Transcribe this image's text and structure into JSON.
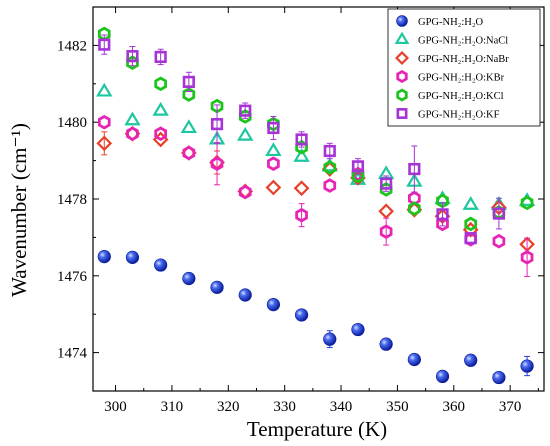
{
  "chart_data": {
    "type": "scatter",
    "xlabel": "Temperature (K)",
    "ylabel": "Wavenumber (cm⁻¹)",
    "xlim": [
      296,
      376
    ],
    "ylim": [
      1473,
      1483
    ],
    "x_ticks": [
      300,
      310,
      320,
      330,
      340,
      350,
      360,
      370
    ],
    "y_ticks": [
      1474,
      1476,
      1478,
      1480,
      1482
    ],
    "grid": false,
    "legend_position": "top-right",
    "x": [
      298,
      303,
      308,
      313,
      318,
      323,
      328,
      333,
      338,
      343,
      348,
      353,
      358,
      363,
      368,
      373
    ],
    "series": [
      {
        "name": "GPG-NH₂:H₂O",
        "marker": "sphere",
        "color": "#1f3fe0",
        "values": [
          1476.5,
          1476.48,
          1476.28,
          1475.93,
          1475.7,
          1475.5,
          1475.25,
          1474.98,
          1474.35,
          1474.6,
          1474.22,
          1473.82,
          1473.38,
          1473.8,
          1473.35,
          1473.65
        ],
        "errors": [
          0,
          0,
          0,
          0,
          0,
          0,
          0,
          0,
          0.22,
          0,
          0,
          0,
          0,
          0,
          0,
          0.25
        ]
      },
      {
        "name": "GPG-NH₂:H₂O:NaCl",
        "marker": "triangle",
        "color": "#1dc7a0",
        "values": [
          1480.8,
          1480.05,
          1480.3,
          1479.85,
          1479.55,
          1479.65,
          1479.25,
          1479.1,
          1478.85,
          1478.5,
          1478.65,
          1478.45,
          1478.0,
          1477.85,
          1477.85,
          1477.95
        ],
        "errors": [
          0,
          0,
          0,
          0,
          0,
          0,
          0,
          0,
          0,
          0,
          0,
          0,
          0,
          0,
          0,
          0
        ]
      },
      {
        "name": "GPG-NH₂:H₂O:NaBr",
        "marker": "diamond",
        "color": "#e8402a",
        "values": [
          1479.45,
          1479.7,
          1479.55,
          1479.2,
          1478.95,
          1478.2,
          1478.3,
          1478.28,
          1478.78,
          1478.55,
          1477.68,
          1477.72,
          1477.55,
          1477.2,
          1477.78,
          1476.82
        ],
        "errors": [
          0.3,
          0,
          0,
          0,
          0.3,
          0,
          0,
          0,
          0,
          0,
          0,
          0,
          0,
          0,
          0,
          0
        ]
      },
      {
        "name": "GPG-NH₂:H₂O:KBr",
        "marker": "hexagon",
        "color": "#e824b4",
        "values": [
          1480.0,
          1479.7,
          1479.7,
          1479.2,
          1478.92,
          1478.18,
          1478.92,
          1477.58,
          1478.35,
          1478.65,
          1477.15,
          1478.02,
          1477.35,
          1476.95,
          1476.9,
          1476.48
        ],
        "errors": [
          0,
          0,
          0,
          0,
          0.55,
          0,
          0,
          0.3,
          0,
          0,
          0.35,
          0,
          0,
          0,
          0,
          0.5
        ]
      },
      {
        "name": "GPG-NH₂:H₂O:KCl",
        "marker": "hexagon",
        "color": "#1ec41e",
        "values": [
          1482.3,
          1481.55,
          1481.0,
          1480.72,
          1480.42,
          1480.15,
          1479.95,
          1479.35,
          1478.82,
          1478.6,
          1478.25,
          1477.75,
          1477.95,
          1477.35,
          1477.65,
          1477.9
        ],
        "errors": [
          0,
          0,
          0,
          0,
          0,
          0,
          0,
          0,
          0,
          0,
          0,
          0,
          0,
          0,
          0,
          0
        ]
      },
      {
        "name": "GPG-NH₂:H₂O:KF",
        "marker": "square",
        "color": "#a533d6",
        "values": [
          1482.02,
          1481.72,
          1481.7,
          1481.05,
          1479.95,
          1480.3,
          1479.85,
          1479.55,
          1479.25,
          1478.85,
          1478.4,
          1478.78,
          1477.6,
          1476.98,
          1477.62,
          null
        ],
        "errors": [
          0.25,
          0.25,
          0.2,
          0.25,
          0.5,
          0.2,
          0.3,
          0.2,
          0.2,
          0.2,
          0.2,
          0.6,
          0.3,
          0,
          0.4,
          0
        ]
      }
    ]
  }
}
